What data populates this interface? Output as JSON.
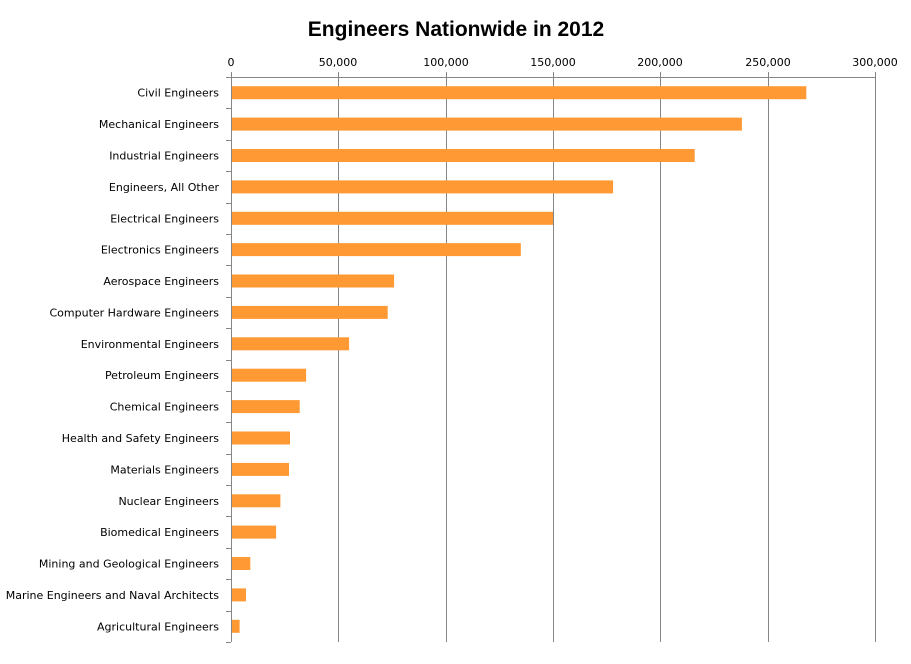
{
  "chart_data": {
    "type": "bar",
    "orientation": "horizontal",
    "title": "Engineers Nationwide in 2012",
    "xlabel": "",
    "ylabel": "",
    "xlim": [
      0,
      300000
    ],
    "x_ticks": [
      "0",
      "50,000",
      "100,000",
      "150,000",
      "200,000",
      "250,000",
      "300,000"
    ],
    "x_tick_values": [
      0,
      50000,
      100000,
      150000,
      200000,
      250000,
      300000
    ],
    "x_axis_position": "top",
    "grid": true,
    "legend": "none",
    "bar_color": "#FF9933",
    "categories": [
      "Civil Engineers",
      "Mechanical Engineers",
      "Industrial Engineers",
      "Engineers, All Other",
      "Electrical Engineers",
      "Electronics Engineers",
      "Aerospace Engineers",
      "Computer Hardware Engineers",
      "Environmental Engineers",
      "Petroleum Engineers",
      "Chemical Engineers",
      "Health and Safety Engineers",
      "Materials Engineers",
      "Nuclear Engineers",
      "Biomedical Engineers",
      "Mining and Geological Engineers",
      "Marine Engineers and Naval Architects",
      "Agricultural Engineers"
    ],
    "values": [
      268000,
      238000,
      216000,
      178000,
      150000,
      135000,
      76000,
      73000,
      55000,
      35000,
      32000,
      27500,
      27000,
      23000,
      21000,
      9000,
      7000,
      4000
    ]
  }
}
